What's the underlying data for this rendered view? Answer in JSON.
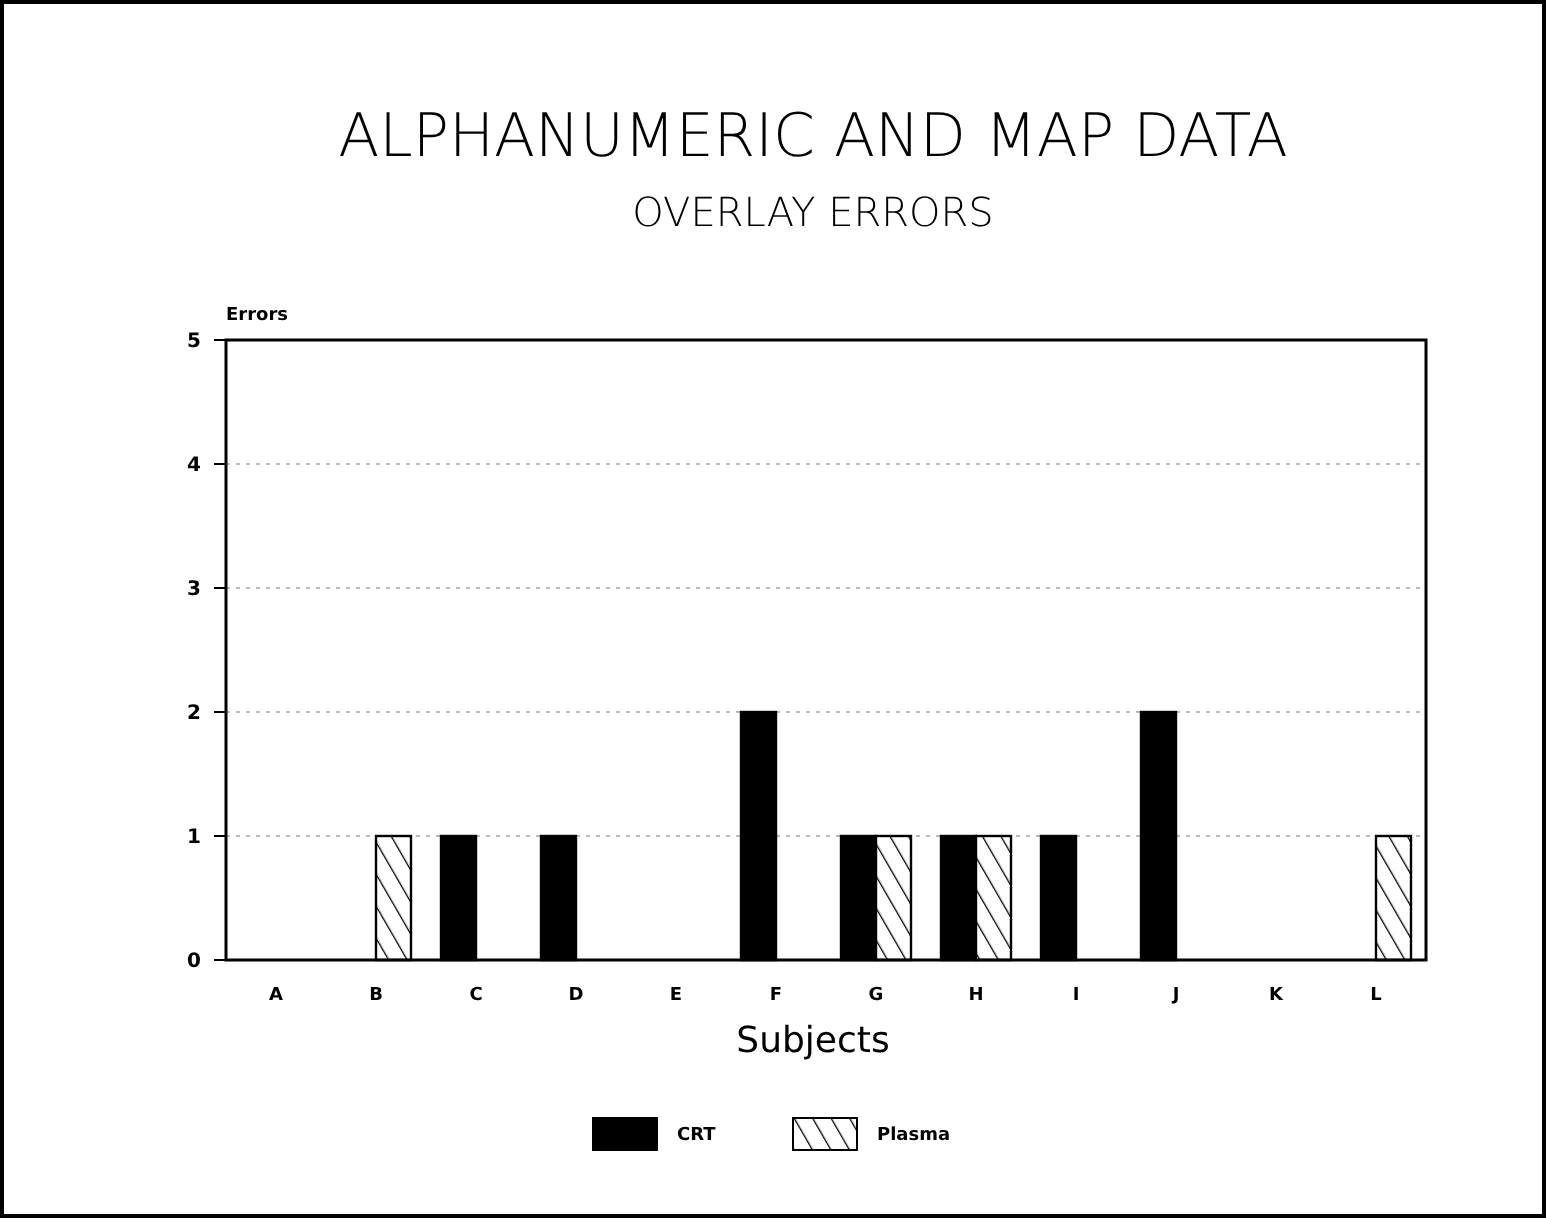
{
  "chart_data": {
    "type": "bar",
    "title": "ALPHANUMERIC AND MAP DATA",
    "subtitle": "OVERLAY ERRORS",
    "xlabel": "Subjects",
    "ylabel": "Errors",
    "categories": [
      "A",
      "B",
      "C",
      "D",
      "E",
      "F",
      "G",
      "H",
      "I",
      "J",
      "K",
      "L"
    ],
    "series": [
      {
        "name": "CRT",
        "color": "#000000",
        "values": [
          0,
          0,
          1,
          1,
          0,
          2,
          1,
          1,
          1,
          2,
          0,
          0
        ]
      },
      {
        "name": "Plasma",
        "color": "#ffffff",
        "values": [
          0,
          1,
          0,
          0,
          0,
          0,
          1,
          1,
          0,
          0,
          0,
          1
        ]
      }
    ],
    "ylim": [
      0,
      5
    ],
    "yticks": [
      0,
      1,
      2,
      3,
      4,
      5
    ],
    "grid": "y",
    "legend": "bottom"
  }
}
